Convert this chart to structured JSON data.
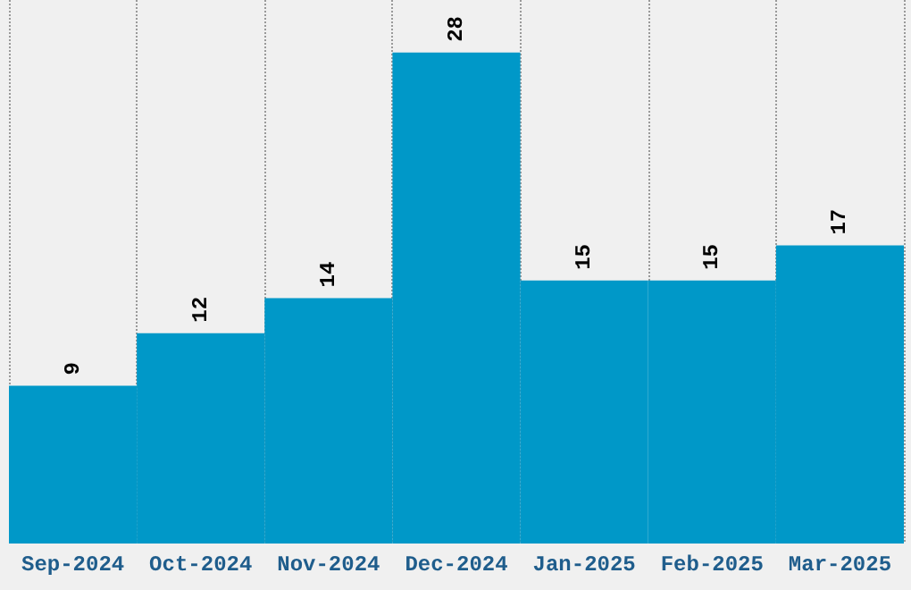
{
  "chart_data": {
    "type": "bar",
    "categories": [
      "Sep-2024",
      "Oct-2024",
      "Nov-2024",
      "Dec-2024",
      "Jan-2025",
      "Feb-2025",
      "Mar-2025"
    ],
    "values": [
      9,
      12,
      14,
      28,
      15,
      15,
      17
    ],
    "color": "#0098c8",
    "ylim": [
      0,
      31
    ],
    "tick_labels": "x",
    "data_labels": true,
    "grid": true
  }
}
